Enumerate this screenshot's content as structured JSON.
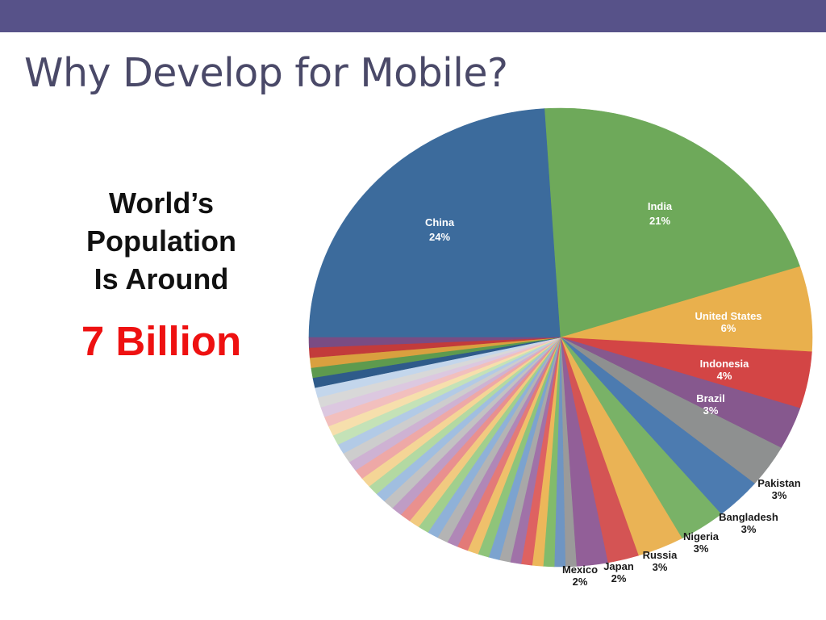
{
  "slide": {
    "title": "Why Develop for Mobile?",
    "population_text_lines": [
      "World’s",
      "Population",
      "Is Around"
    ],
    "big_number": "7 Billion"
  },
  "colors": {
    "top_bar": "#575289",
    "title": "#4a4968",
    "big_number": "#ee1111"
  },
  "chart_data": {
    "type": "pie",
    "start": "9 o'clock",
    "direction": "clockwise",
    "labeled_slices": [
      {
        "name": "China",
        "value": 24,
        "label": "24%",
        "color": "#3c6b9c",
        "label_inside": true
      },
      {
        "name": "India",
        "value": 21,
        "label": "21%",
        "color": "#6ea95a",
        "label_inside": true
      },
      {
        "name": "United States",
        "value": 6,
        "label": "6%",
        "color": "#e9b04d",
        "label_inside": true
      },
      {
        "name": "Indonesia",
        "value": 4,
        "label": "4%",
        "color": "#d34545",
        "label_inside": true
      },
      {
        "name": "Brazil",
        "value": 3,
        "label": "3%",
        "color": "#86588e",
        "label_inside": true
      },
      {
        "name": "Pakistan",
        "value": 3,
        "label": "3%",
        "color": "#8e9090",
        "label_inside": false
      },
      {
        "name": "Bangladesh",
        "value": 3,
        "label": "3%",
        "color": "#4c7bb0",
        "label_inside": false
      },
      {
        "name": "Nigeria",
        "value": 3,
        "label": "3%",
        "color": "#79b267",
        "label_inside": false
      },
      {
        "name": "Russia",
        "value": 3,
        "label": "3%",
        "color": "#eab355",
        "label_inside": false
      },
      {
        "name": "Japan",
        "value": 2,
        "label": "2%",
        "color": "#d45454",
        "label_inside": false
      },
      {
        "name": "Mexico",
        "value": 2,
        "label": "2%",
        "color": "#925f98",
        "label_inside": false
      }
    ],
    "unlabeled_slice_colors": [
      "#9a9a9a",
      "#6f95c2",
      "#82bb6b",
      "#ecb75a",
      "#de6261",
      "#a072a8",
      "#a8a8a8",
      "#7ca3cf",
      "#8fc47a",
      "#efc06b",
      "#e37a78",
      "#b087b7",
      "#b4b4b4",
      "#8fb1d8",
      "#a1cf8d",
      "#f1ca80",
      "#e9908e",
      "#bf9cc5",
      "#c2c2c2",
      "#a0bee0",
      "#b3d9a2",
      "#f4d596",
      "#eea8a6",
      "#ceb2d3",
      "#cdcdcd",
      "#b2cae6",
      "#c4e2b7",
      "#f6dfac",
      "#f2bfbd",
      "#dcc8e0",
      "#d8d8d8",
      "#c3d6ec",
      "#2f5b8a",
      "#5e9a4e",
      "#d9a03f",
      "#c23b3b",
      "#7a4c83"
    ]
  }
}
